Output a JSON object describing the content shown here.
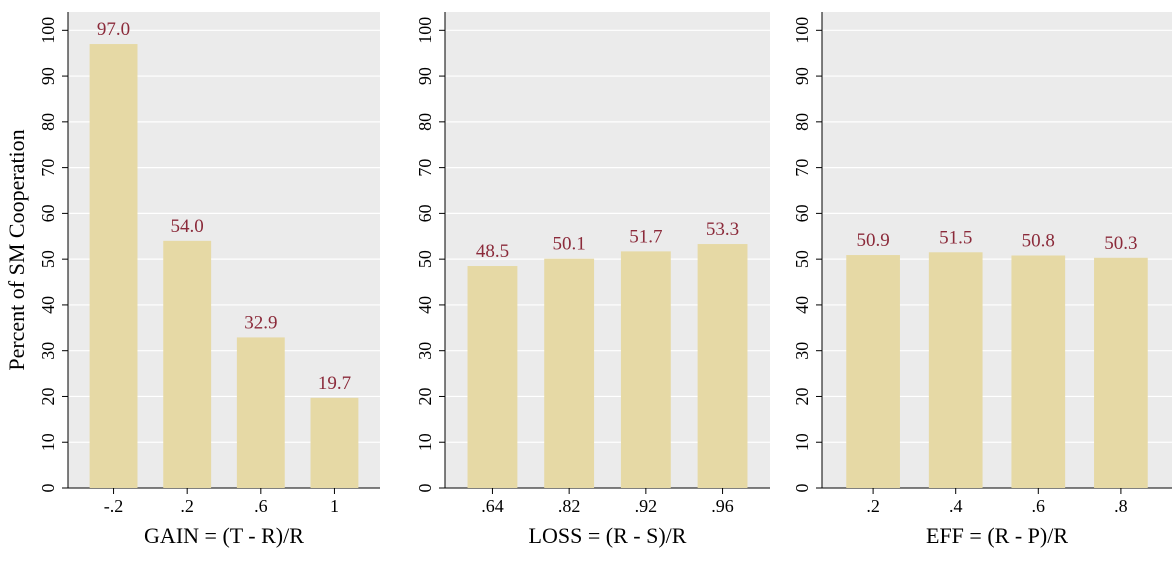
{
  "chart_data": [
    {
      "type": "bar",
      "y_label": "Percent of SM Cooperation",
      "x_label": "GAIN = (T - R)/R",
      "categories": [
        "-.2",
        ".2",
        ".6",
        "1"
      ],
      "values": [
        97.0,
        54.0,
        32.9,
        19.7
      ],
      "value_labels": [
        "97.0",
        "54.0",
        "32.9",
        "19.7"
      ],
      "color": "#e6d9a5",
      "ylim": [
        0,
        104
      ],
      "yticks": [
        0,
        10,
        20,
        30,
        40,
        50,
        60,
        70,
        80,
        90,
        100
      ],
      "grid": true
    },
    {
      "type": "bar",
      "x_label": "LOSS = (R - S)/R",
      "categories": [
        ".64",
        ".82",
        ".92",
        ".96"
      ],
      "values": [
        48.5,
        50.1,
        51.7,
        53.3
      ],
      "value_labels": [
        "48.5",
        "50.1",
        "51.7",
        "53.3"
      ],
      "color": "#e6d9a5",
      "ylim": [
        0,
        104
      ],
      "yticks": [
        0,
        10,
        20,
        30,
        40,
        50,
        60,
        70,
        80,
        90,
        100
      ],
      "grid": true
    },
    {
      "type": "bar",
      "x_label": "EFF = (R - P)/R",
      "categories": [
        ".2",
        ".4",
        ".6",
        ".8"
      ],
      "values": [
        50.9,
        51.5,
        50.8,
        50.3
      ],
      "value_labels": [
        "50.9",
        "51.5",
        "50.8",
        "50.3"
      ],
      "color": "#e6d9a5",
      "ylim": [
        0,
        104
      ],
      "yticks": [
        0,
        10,
        20,
        30,
        40,
        50,
        60,
        70,
        80,
        90,
        100
      ],
      "grid": true
    }
  ]
}
